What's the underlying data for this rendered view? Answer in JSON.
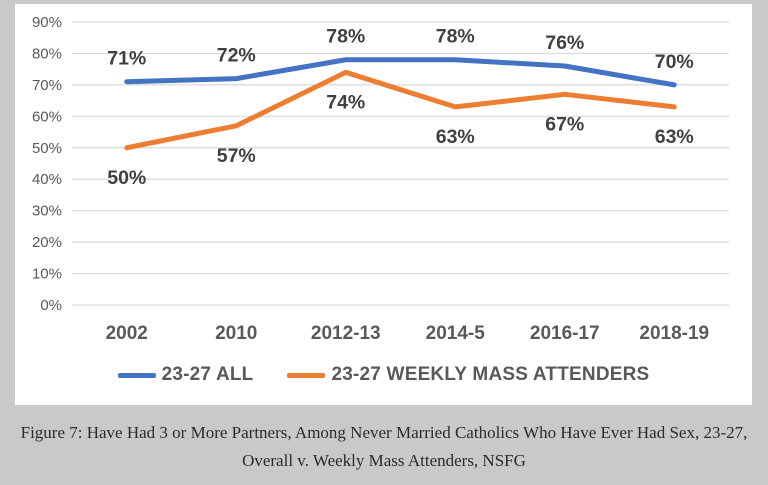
{
  "caption": {
    "line1": "Figure 7: Have Had 3 or More Partners, Among Never Married Catholics Who Have Ever Had Sex, 23-27,",
    "line2": "Overall v. Weekly Mass Attenders, NSFG"
  },
  "chart_data": {
    "type": "line",
    "categories": [
      "2002",
      "2010",
      "2012-13",
      "2014-5",
      "2016-17",
      "2018-19"
    ],
    "series": [
      {
        "name": "23-27 ALL",
        "values": [
          71,
          72,
          78,
          78,
          76,
          70
        ],
        "color": "#4472C4",
        "label_position": "above"
      },
      {
        "name": "23-27 WEEKLY MASS ATTENDERS",
        "values": [
          50,
          57,
          74,
          63,
          67,
          63
        ],
        "color": "#ED7D31",
        "label_position": "below"
      }
    ],
    "title": "",
    "xlabel": "",
    "ylabel": "",
    "ylim": [
      0,
      90
    ],
    "ytick_step": 10,
    "ytick_format": "percent",
    "data_labels": true,
    "grid": "horizontal",
    "legend_position": "bottom",
    "colors": {
      "grid": "#D9D9D9",
      "axis_text": "#595959",
      "data_label_text": "#404040",
      "chart_background": "#FFFFFF",
      "page_background": "#C9C9C9"
    }
  }
}
